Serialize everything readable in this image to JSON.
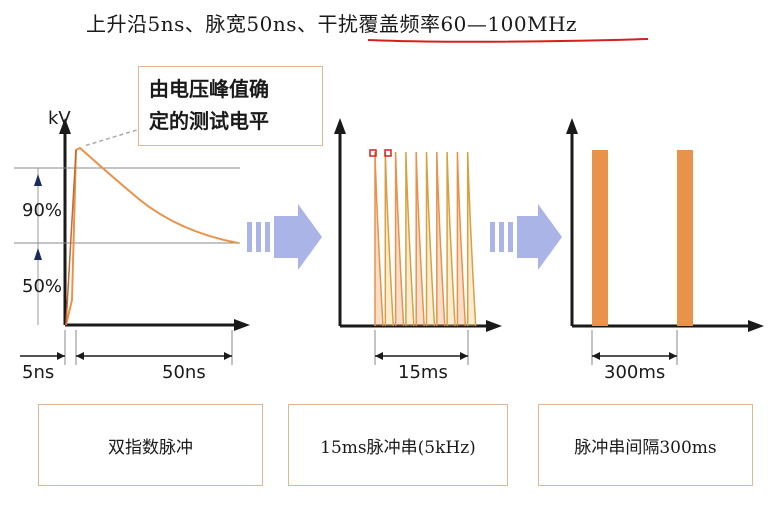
{
  "title": "上升沿5ns、脉宽50ns、干扰覆盖频率60—100MHz",
  "callout": {
    "line1": "由电压峰值确",
    "line2": "定的测试电平"
  },
  "panel1": {
    "y_unit": "kV",
    "level_high": "90%",
    "level_low": "50%",
    "rise_label": "5ns",
    "width_label": "50ns"
  },
  "panel2": {
    "span_label": "15ms"
  },
  "panel3": {
    "span_label": "300ms"
  },
  "boxes": {
    "box1": "双指数脉冲",
    "box2": "15ms脉冲串(5kHz)",
    "box3": "脉冲串间隔300ms"
  },
  "colors": {
    "pulse": "#e8924a",
    "underline": "#d42020",
    "arrow": "#aab4e6",
    "axis": "#1a1a1a"
  }
}
